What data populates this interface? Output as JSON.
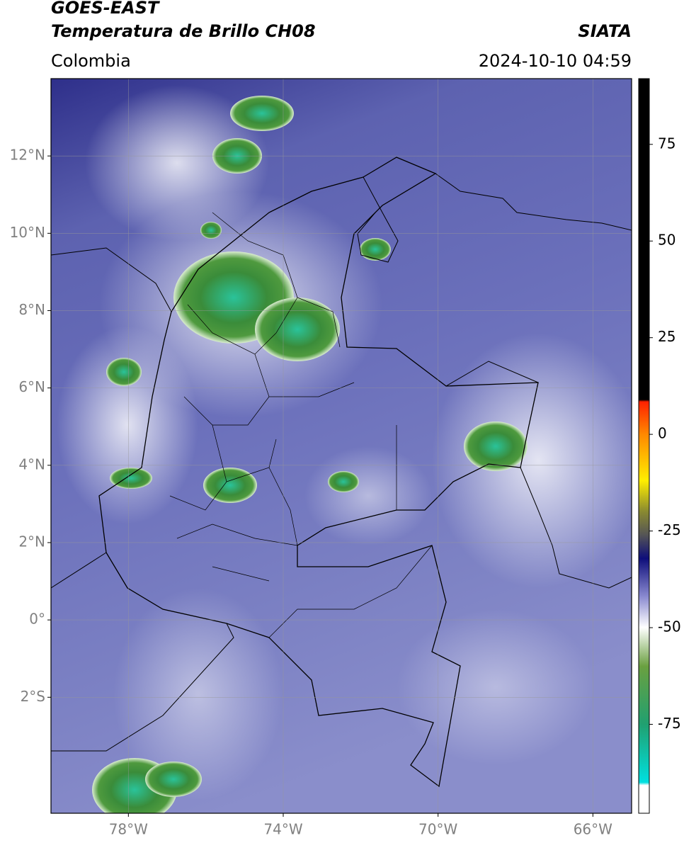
{
  "header": {
    "title": "GOES-EAST",
    "subtitle": "Temperatura de Brillo CH08",
    "region": "Colombia",
    "source": "SIATA",
    "datetime": "2024-10-10 04:59"
  },
  "map": {
    "xlim": [
      -80,
      -65
    ],
    "ylim": [
      -5,
      14
    ],
    "grid": true,
    "lat_ticks": [
      {
        "value": 12,
        "label": "12°N"
      },
      {
        "value": 10,
        "label": "10°N"
      },
      {
        "value": 8,
        "label": "8°N"
      },
      {
        "value": 6,
        "label": "6°N"
      },
      {
        "value": 4,
        "label": "4°N"
      },
      {
        "value": 2,
        "label": "2°N"
      },
      {
        "value": 0,
        "label": "0°"
      },
      {
        "value": -2,
        "label": "2°S"
      }
    ],
    "lon_ticks": [
      {
        "value": -78,
        "label": "78°W"
      },
      {
        "value": -74,
        "label": "74°W"
      },
      {
        "value": -70,
        "label": "70°W"
      },
      {
        "value": -66,
        "label": "66°W"
      }
    ],
    "colorbar": {
      "clim": [
        -98,
        92
      ],
      "ticks": [
        75,
        50,
        25,
        0,
        -25,
        -50,
        -75
      ]
    }
  }
}
